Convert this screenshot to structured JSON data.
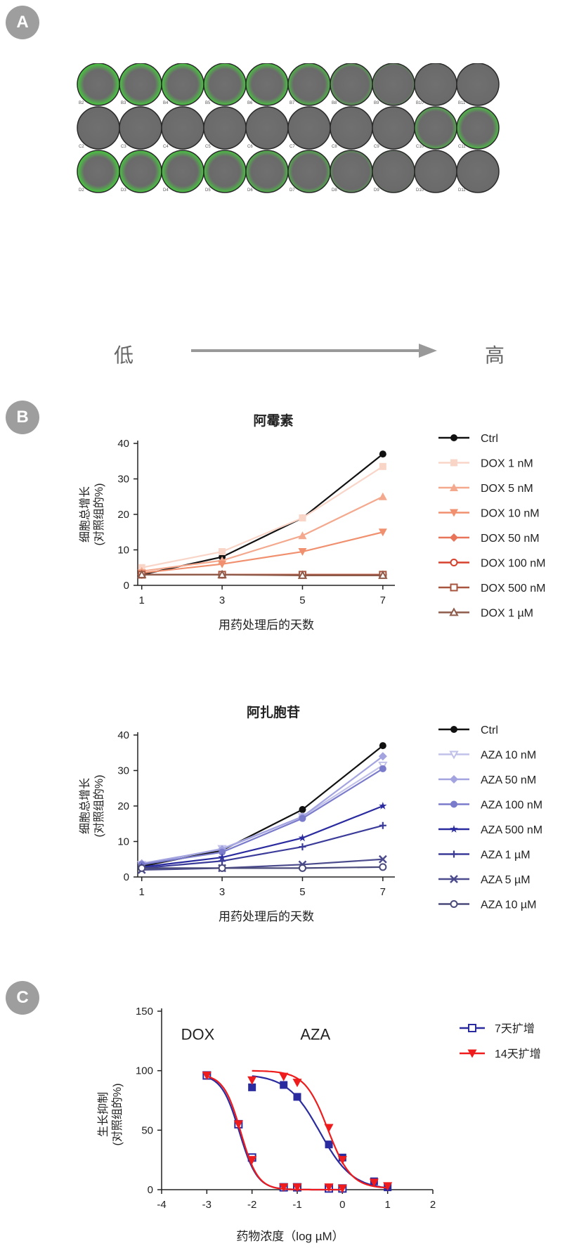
{
  "panels": {
    "a": "A",
    "b": "B",
    "c": "C"
  },
  "panel_a": {
    "row_labels": [
      [
        "B2",
        "B3",
        "B4",
        "B5",
        "B6",
        "B7",
        "B8",
        "B9",
        "B10",
        "B11"
      ],
      [
        "C2",
        "C3",
        "C4",
        "C5",
        "C6",
        "C7",
        "C8",
        "C9",
        "C10",
        "C11"
      ],
      [
        "D2",
        "D3",
        "D4",
        "D5",
        "D6",
        "D7",
        "D8",
        "D9",
        "D10",
        "D11"
      ]
    ],
    "green_level": [
      [
        0.9,
        0.85,
        0.85,
        0.8,
        0.8,
        0.7,
        0.5,
        0.3,
        0.15,
        0.05
      ],
      [
        0.0,
        0.0,
        0.0,
        0.0,
        0.0,
        0.0,
        0.0,
        0.0,
        0.6,
        0.75
      ],
      [
        0.9,
        0.85,
        0.85,
        0.8,
        0.7,
        0.6,
        0.4,
        0.2,
        0.1,
        0.05
      ]
    ],
    "low_label": "低",
    "high_label": "高"
  },
  "chart_data": [
    {
      "type": "line",
      "title": "阿霉素",
      "ylabel_line1": "细胞总增长",
      "ylabel_line2": "(对照组的%)",
      "xlabel": "用药处理后的天数",
      "x": [
        1,
        3,
        5,
        7
      ],
      "xticks": [
        "1",
        "3",
        "5",
        "7"
      ],
      "ylim": [
        0,
        40
      ],
      "yticks": [
        "0",
        "10",
        "20",
        "30",
        "40"
      ],
      "series": [
        {
          "name": "Ctrl",
          "values": [
            3,
            8,
            19,
            37
          ],
          "color": "#111111",
          "marker": "circle"
        },
        {
          "name": "DOX 1 nM",
          "values": [
            5,
            9.5,
            19,
            33.5
          ],
          "color": "#f9d5c8",
          "marker": "square"
        },
        {
          "name": "DOX 5 nM",
          "values": [
            4,
            7,
            14,
            25
          ],
          "color": "#f4a98e",
          "marker": "triangle-up"
        },
        {
          "name": "DOX 10 nM",
          "values": [
            3.5,
            6,
            9.5,
            15
          ],
          "color": "#f0906f",
          "marker": "triangle-down"
        },
        {
          "name": "DOX 50 nM",
          "values": [
            3,
            3,
            3,
            3
          ],
          "color": "#e8745a",
          "marker": "diamond"
        },
        {
          "name": "DOX 100 nM",
          "values": [
            3,
            3,
            3,
            3
          ],
          "color": "#d6402c",
          "marker": "circle-open"
        },
        {
          "name": "DOX 500 nM",
          "values": [
            3,
            3,
            3,
            3
          ],
          "color": "#a8553f",
          "marker": "square-open"
        },
        {
          "name": "DOX 1 µM",
          "values": [
            3,
            3,
            2.8,
            2.8
          ],
          "color": "#8e5a4a",
          "marker": "triangle-open"
        }
      ]
    },
    {
      "type": "line",
      "title": "阿扎胞苷",
      "ylabel_line1": "细胞总增长",
      "ylabel_line2": "(对照组的%)",
      "xlabel": "用药处理后的天数",
      "x": [
        1,
        3,
        5,
        7
      ],
      "xticks": [
        "1",
        "3",
        "5",
        "7"
      ],
      "ylim": [
        0,
        40
      ],
      "yticks": [
        "0",
        "10",
        "20",
        "30",
        "40"
      ],
      "series": [
        {
          "name": "Ctrl",
          "values": [
            3,
            7.5,
            19,
            37
          ],
          "color": "#111111",
          "marker": "circle"
        },
        {
          "name": "AZA 10 nM",
          "values": [
            3.5,
            8,
            17,
            31.5
          ],
          "color": "#c1c1ea",
          "marker": "triangle-down-open"
        },
        {
          "name": "AZA 50 nM",
          "values": [
            3.8,
            7.8,
            17,
            34
          ],
          "color": "#a3a3e0",
          "marker": "diamond"
        },
        {
          "name": "AZA 100 nM",
          "values": [
            3.5,
            7,
            16.5,
            30.5
          ],
          "color": "#7b7bcc",
          "marker": "circle"
        },
        {
          "name": "AZA 500 nM",
          "values": [
            2.8,
            5.5,
            11,
            20
          ],
          "color": "#2b2ba0",
          "marker": "star"
        },
        {
          "name": "AZA 1 µM",
          "values": [
            2.5,
            4.5,
            8.5,
            14.5
          ],
          "color": "#3b3b9a",
          "marker": "plus"
        },
        {
          "name": "AZA 5 µM",
          "values": [
            2,
            2.5,
            3.5,
            5
          ],
          "color": "#4b4b8e",
          "marker": "cross"
        },
        {
          "name": "AZA 10 µM",
          "values": [
            2.5,
            2.5,
            2.5,
            2.8
          ],
          "color": "#4a4a7a",
          "marker": "circle-open"
        }
      ]
    },
    {
      "type": "scatter",
      "ylabel_line1": "生长抑制",
      "ylabel_line2": "(对照组的%)",
      "xlabel": "药物浓度（log µM）",
      "xlim": [
        -4,
        2
      ],
      "ylim": [
        0,
        150
      ],
      "xticks": [
        "-4",
        "-3",
        "-2",
        "-1",
        "0",
        "1",
        "2"
      ],
      "yticks": [
        "0",
        "50",
        "100",
        "150"
      ],
      "annotations": [
        "DOX",
        "AZA"
      ],
      "series": [
        {
          "name": "7天扩增",
          "color": "#2b2ba0",
          "marker": "square-open",
          "points": [
            [
              -3,
              96
            ],
            [
              -2.3,
              55
            ],
            [
              -2,
              27
            ],
            [
              -1.3,
              2
            ],
            [
              -1,
              2
            ],
            [
              -0.3,
              1
            ],
            [
              0,
              1
            ]
          ],
          "curve": {
            "top": 97,
            "bottom": 0,
            "logic50": -2.28,
            "hill": 2.2
          }
        },
        {
          "name": "14天扩增",
          "color": "#ee1c1c",
          "marker": "triangle-down",
          "points": [
            [
              -3,
              96
            ],
            [
              -2.3,
              55
            ],
            [
              -2,
              25
            ],
            [
              -1.3,
              2
            ],
            [
              -1,
              2
            ],
            [
              -0.3,
              2
            ],
            [
              0,
              1
            ]
          ],
          "curve": {
            "top": 97,
            "bottom": 0,
            "logic50": -2.25,
            "hill": 2.3
          }
        },
        {
          "name": "7天扩增 AZA",
          "color": "#2b2ba0",
          "marker": "square",
          "legend": false,
          "points": [
            [
              -2,
              86
            ],
            [
              -1.3,
              88
            ],
            [
              -1,
              78
            ],
            [
              -0.3,
              38
            ],
            [
              0,
              27
            ],
            [
              0.7,
              7
            ],
            [
              1,
              2
            ]
          ],
          "curve": {
            "top": 97,
            "bottom": 0,
            "logic50": -0.5,
            "hill": 1.2
          }
        },
        {
          "name": "14天扩增 AZA",
          "color": "#ee1c1c",
          "marker": "triangle-down",
          "legend": false,
          "points": [
            [
              -2,
              92
            ],
            [
              -1.3,
              95
            ],
            [
              -1,
              90
            ],
            [
              -0.3,
              52
            ],
            [
              0,
              25
            ],
            [
              0.7,
              6
            ],
            [
              1,
              3
            ]
          ],
          "curve": {
            "top": 100,
            "bottom": 1,
            "logic50": -0.32,
            "hill": 1.7
          }
        }
      ]
    }
  ]
}
